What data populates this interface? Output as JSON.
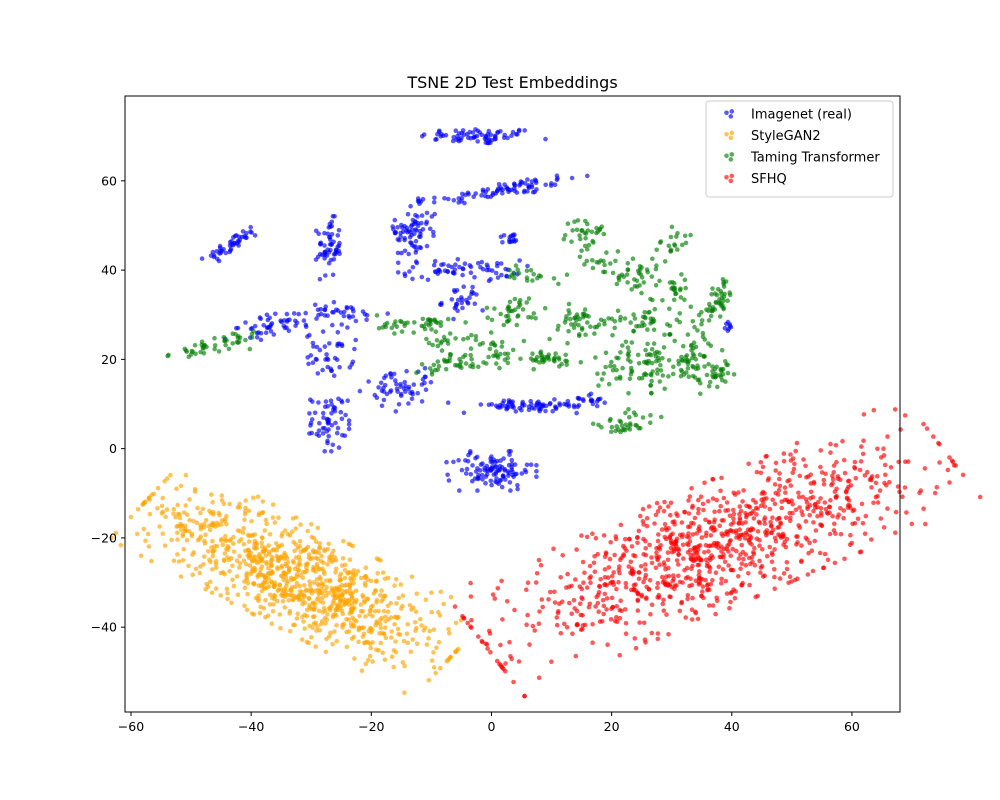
{
  "chart_data": {
    "type": "scatter",
    "title": "TSNE 2D Test Embeddings",
    "xlabel": "",
    "ylabel": "",
    "xlim": [
      -61,
      68
    ],
    "ylim": [
      -59,
      79
    ],
    "x_ticks": [
      -60,
      -40,
      -20,
      0,
      20,
      40,
      60
    ],
    "y_ticks": [
      -40,
      -20,
      0,
      20,
      40,
      60
    ],
    "x_tick_labels": [
      "−60",
      "−40",
      "−20",
      "0",
      "20",
      "40",
      "60"
    ],
    "y_tick_labels": [
      "−40",
      "−20",
      "0",
      "20",
      "40",
      "60"
    ],
    "grid": false,
    "legend_position": "top-right",
    "series": [
      {
        "name": "Imagenet (real)",
        "color": "#0000ff",
        "clusters": [
          {
            "cx": -2,
            "cy": 70,
            "sx": 5,
            "sy": 0.9,
            "angle": 0,
            "n": 70
          },
          {
            "cx": 2,
            "cy": 58,
            "sx": 6.5,
            "sy": 0.9,
            "angle": 12,
            "n": 80
          },
          {
            "cx": -43,
            "cy": 46,
            "sx": 2.8,
            "sy": 0.7,
            "angle": 40,
            "n": 45
          },
          {
            "cx": -27,
            "cy": 45,
            "sx": 1,
            "sy": 3.2,
            "angle": 0,
            "n": 55
          },
          {
            "cx": -13,
            "cy": 49,
            "sx": 1.6,
            "sy": 3.5,
            "angle": -10,
            "n": 75
          },
          {
            "cx": -5,
            "cy": 40,
            "sx": 5,
            "sy": 1.1,
            "angle": 0,
            "n": 65
          },
          {
            "cx": 3,
            "cy": 47,
            "sx": 1.2,
            "sy": 0.7,
            "angle": 0,
            "n": 15
          },
          {
            "cx": -5,
            "cy": 33,
            "sx": 1.6,
            "sy": 1.8,
            "angle": 0,
            "n": 30
          },
          {
            "cx": -35,
            "cy": 28,
            "sx": 4.5,
            "sy": 1.2,
            "angle": 15,
            "n": 55
          },
          {
            "cx": -24,
            "cy": 30,
            "sx": 3.5,
            "sy": 1.3,
            "angle": 0,
            "n": 30
          },
          {
            "cx": -27,
            "cy": 21,
            "sx": 2,
            "sy": 2.5,
            "angle": 0,
            "n": 40
          },
          {
            "cx": -15,
            "cy": 14,
            "sx": 2.2,
            "sy": 2.8,
            "angle": -40,
            "n": 55
          },
          {
            "cx": -27,
            "cy": 6,
            "sx": 1.5,
            "sy": 3,
            "angle": 0,
            "n": 60
          },
          {
            "cx": 6,
            "cy": 9.5,
            "sx": 6,
            "sy": 0.7,
            "angle": 0,
            "n": 70
          },
          {
            "cx": 16,
            "cy": 11,
            "sx": 1.5,
            "sy": 0.8,
            "angle": 0,
            "n": 20
          },
          {
            "cx": 0,
            "cy": -5,
            "sx": 3.4,
            "sy": 2,
            "angle": 0,
            "n": 110
          },
          {
            "cx": 40,
            "cy": 27,
            "sx": 0.6,
            "sy": 1.2,
            "angle": 0,
            "n": 8
          }
        ]
      },
      {
        "name": "StyleGAN2",
        "color": "#ffa500",
        "clusters": [
          {
            "cx": -32,
            "cy": -29,
            "sx": 14,
            "sy": 5,
            "angle": -35,
            "n": 950
          }
        ]
      },
      {
        "name": "Taming Transformer",
        "color": "#008000",
        "clusters": [
          {
            "cx": -46,
            "cy": 23,
            "sx": 4,
            "sy": 1.2,
            "angle": 20,
            "n": 45
          },
          {
            "cx": -12,
            "cy": 28,
            "sx": 3.5,
            "sy": 1,
            "angle": 0,
            "n": 40
          },
          {
            "cx": -7,
            "cy": 24,
            "sx": 2,
            "sy": 1,
            "angle": 0,
            "n": 20
          },
          {
            "cx": -4,
            "cy": 19.5,
            "sx": 4,
            "sy": 1.2,
            "angle": 10,
            "n": 50
          },
          {
            "cx": 4,
            "cy": 31,
            "sx": 2.5,
            "sy": 1.5,
            "angle": 0,
            "n": 35
          },
          {
            "cx": 7,
            "cy": 39,
            "sx": 2.5,
            "sy": 0.8,
            "angle": -10,
            "n": 20
          },
          {
            "cx": 9,
            "cy": 20,
            "sx": 3,
            "sy": 1,
            "angle": 0,
            "n": 35
          },
          {
            "cx": 14,
            "cy": 28,
            "sx": 2.5,
            "sy": 2,
            "angle": 0,
            "n": 40
          },
          {
            "cx": 16,
            "cy": 49,
            "sx": 1.8,
            "sy": 1.2,
            "angle": 0,
            "n": 25
          },
          {
            "cx": 16,
            "cy": 44,
            "sx": 0.8,
            "sy": 2,
            "angle": 0,
            "n": 12
          },
          {
            "cx": 24,
            "cy": 39,
            "sx": 4,
            "sy": 2,
            "angle": -20,
            "n": 50
          },
          {
            "cx": 25,
            "cy": 28.5,
            "sx": 4,
            "sy": 1.5,
            "angle": 0,
            "n": 45
          },
          {
            "cx": 25,
            "cy": 19,
            "sx": 3.5,
            "sy": 3,
            "angle": 0,
            "n": 90
          },
          {
            "cx": 22,
            "cy": 5,
            "sx": 3,
            "sy": 1.5,
            "angle": 20,
            "n": 35
          },
          {
            "cx": 31,
            "cy": 35,
            "sx": 2,
            "sy": 2,
            "angle": 0,
            "n": 20
          },
          {
            "cx": 34,
            "cy": 20,
            "sx": 2,
            "sy": 3.5,
            "angle": 0,
            "n": 55
          },
          {
            "cx": 30,
            "cy": 45,
            "sx": 1,
            "sy": 2,
            "angle": -20,
            "n": 20
          },
          {
            "cx": 36,
            "cy": 31,
            "sx": 1.2,
            "sy": 1.5,
            "angle": 0,
            "n": 15
          },
          {
            "cx": 38,
            "cy": 34,
            "sx": 1,
            "sy": 2,
            "angle": 0,
            "n": 30
          },
          {
            "cx": 38,
            "cy": 17,
            "sx": 1.5,
            "sy": 1.2,
            "angle": 0,
            "n": 25
          },
          {
            "cx": 1,
            "cy": 23,
            "sx": 2,
            "sy": 1.5,
            "angle": 0,
            "n": 15
          }
        ]
      },
      {
        "name": "SFHQ",
        "color": "#ff0000",
        "clusters": [
          {
            "cx": 37,
            "cy": -22,
            "sx": 20,
            "sy": 6,
            "angle": 30,
            "n": 1000
          }
        ]
      }
    ]
  }
}
